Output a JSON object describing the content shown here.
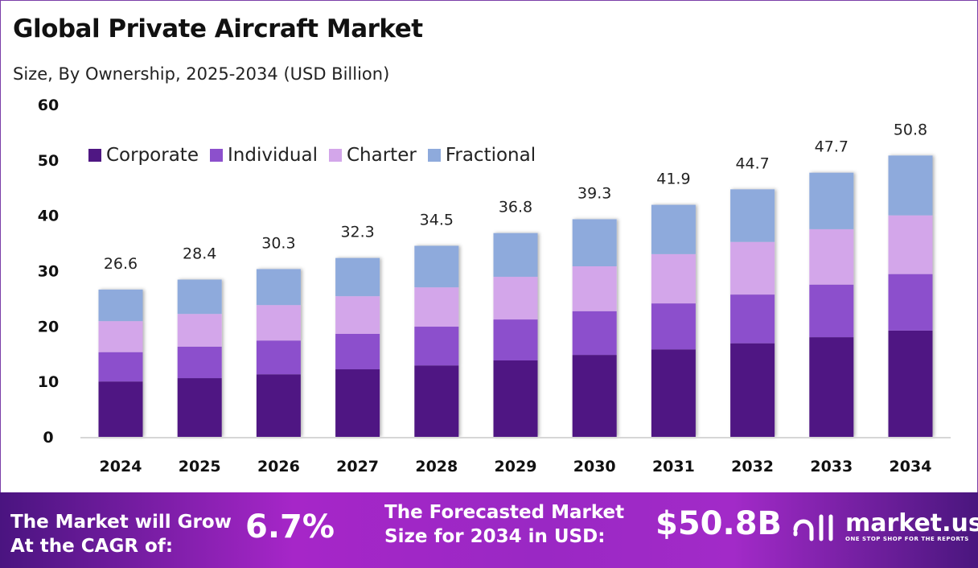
{
  "title": "Global Private Aircraft Market",
  "subtitle": "Size, By Ownership, 2025-2034 (USD Billion)",
  "chart_data": {
    "type": "bar",
    "stacked": true,
    "categories": [
      "2024",
      "2025",
      "2026",
      "2027",
      "2028",
      "2029",
      "2030",
      "2031",
      "2032",
      "2033",
      "2034"
    ],
    "series": [
      {
        "name": "Corporate",
        "color": "#4f1783",
        "values": [
          10.0,
          10.6,
          11.3,
          12.2,
          12.9,
          13.8,
          14.8,
          15.8,
          16.9,
          18.0,
          19.2
        ]
      },
      {
        "name": "Individual",
        "color": "#8c50cc",
        "values": [
          5.3,
          5.7,
          6.1,
          6.4,
          7.0,
          7.4,
          7.9,
          8.3,
          8.8,
          9.5,
          10.2
        ]
      },
      {
        "name": "Charter",
        "color": "#d3a6ea",
        "values": [
          5.6,
          5.9,
          6.4,
          6.8,
          7.1,
          7.7,
          8.1,
          8.9,
          9.5,
          10.0,
          10.6
        ]
      },
      {
        "name": "Fractional",
        "color": "#8eaadc",
        "values": [
          5.7,
          6.2,
          6.5,
          6.9,
          7.5,
          7.9,
          8.5,
          8.9,
          9.5,
          10.2,
          10.8
        ]
      }
    ],
    "totals": [
      "26.6",
      "28.4",
      "30.3",
      "32.3",
      "34.5",
      "36.8",
      "39.3",
      "41.9",
      "44.7",
      "47.7",
      "50.8"
    ],
    "yticks": [
      "0",
      "10",
      "20",
      "30",
      "40",
      "50",
      "60"
    ],
    "ylim": [
      0,
      60
    ],
    "grid": false,
    "legend_position": "top-left"
  },
  "banner": {
    "cagr_label_line1": "The Market will Grow",
    "cagr_label_line2": "At the CAGR of:",
    "cagr_value": "6.7%",
    "forecast_label_line1": "The Forecasted Market",
    "forecast_label_line2": "Size for 2034 in USD:",
    "forecast_value": "$50.8B",
    "logo_text": "market.us",
    "logo_tagline": "ONE STOP SHOP FOR THE REPORTS"
  }
}
